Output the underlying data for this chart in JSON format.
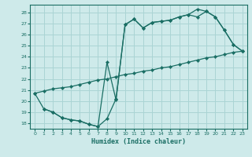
{
  "xlabel": "Humidex (Indice chaleur)",
  "bg_color": "#ceeaea",
  "grid_color": "#aad4d4",
  "line_color": "#1a6e64",
  "xlim": [
    -0.5,
    23.5
  ],
  "ylim": [
    17.5,
    28.7
  ],
  "yticks": [
    18,
    19,
    20,
    21,
    22,
    23,
    24,
    25,
    26,
    27,
    28
  ],
  "xticks": [
    0,
    1,
    2,
    3,
    4,
    5,
    6,
    7,
    8,
    9,
    10,
    11,
    12,
    13,
    14,
    15,
    16,
    17,
    18,
    19,
    20,
    21,
    22,
    23
  ],
  "line1_x": [
    0,
    1,
    2,
    3,
    4,
    5,
    6,
    7,
    8,
    9,
    10,
    11,
    12,
    13,
    14,
    15,
    16,
    17,
    18,
    19,
    20,
    21,
    22,
    23
  ],
  "line1_y": [
    20.7,
    20.9,
    21.1,
    21.2,
    21.3,
    21.5,
    21.7,
    21.9,
    22.0,
    22.2,
    22.4,
    22.5,
    22.7,
    22.8,
    23.0,
    23.1,
    23.3,
    23.5,
    23.7,
    23.9,
    24.0,
    24.2,
    24.4,
    24.5
  ],
  "line2_x": [
    0,
    1,
    2,
    3,
    4,
    5,
    6,
    7,
    8,
    9,
    10,
    11,
    12,
    13,
    14,
    15,
    16,
    17,
    18,
    19,
    20,
    21,
    22,
    23
  ],
  "line2_y": [
    20.7,
    19.3,
    19.0,
    18.5,
    18.3,
    18.2,
    17.9,
    17.7,
    23.5,
    20.1,
    26.9,
    27.4,
    26.6,
    27.1,
    27.2,
    27.3,
    27.6,
    27.8,
    27.6,
    28.1,
    27.6,
    26.4,
    25.1,
    24.5
  ],
  "line3_x": [
    1,
    2,
    3,
    4,
    5,
    6,
    7,
    8,
    9,
    10,
    11,
    12,
    13,
    14,
    15,
    16,
    17,
    18,
    19,
    20,
    21,
    22,
    23
  ],
  "line3_y": [
    19.3,
    19.0,
    18.5,
    18.3,
    18.2,
    17.9,
    17.7,
    18.4,
    20.2,
    26.9,
    27.4,
    26.6,
    27.1,
    27.2,
    27.3,
    27.6,
    27.8,
    28.3,
    28.1,
    27.6,
    26.4,
    25.1,
    24.5
  ]
}
